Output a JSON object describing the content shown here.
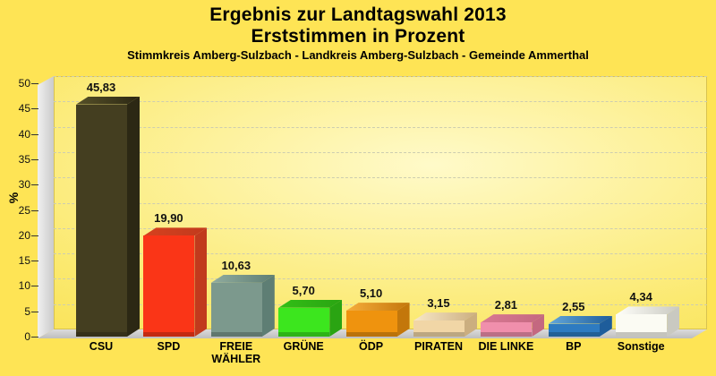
{
  "header": {
    "title_line1": "Ergebnis zur Landtagswahl 2013",
    "title_line2": "Erststimmen in Prozent",
    "subtitle": "Stimmkreis Amberg-Sulzbach - Landkreis Amberg-Sulzbach - Gemeinde Ammerthal"
  },
  "chart_data": {
    "type": "bar",
    "style": "3d-column",
    "title": "Ergebnis zur Landtagswahl 2013 - Erststimmen in Prozent",
    "subtitle": "Stimmkreis Amberg-Sulzbach - Landkreis Amberg-Sulzbach - Gemeinde Ammerthal",
    "ylabel": "%",
    "ylim": [
      0,
      50
    ],
    "ytick_step": 5,
    "grid": "horizontal-dashed",
    "legend": "none",
    "categories": [
      "CSU",
      "SPD",
      "FREIE WÄHLER",
      "GRÜNE",
      "ÖDP",
      "PIRATEN",
      "DIE LINKE",
      "BP",
      "Sonstige"
    ],
    "slugs": [
      "csu",
      "spd",
      "freie-waehler",
      "gruene",
      "oedp",
      "piraten",
      "die-linke",
      "bp",
      "sonstige"
    ],
    "values": [
      45.83,
      19.9,
      10.63,
      5.7,
      5.1,
      3.15,
      2.81,
      2.55,
      4.34
    ],
    "value_labels": [
      "45,83",
      "19,90",
      "10,63",
      "5,70",
      "5,10",
      "3,15",
      "2,81",
      "2,55",
      "4,34"
    ],
    "bar_colors": [
      {
        "front": "#443E20",
        "top": "#565028",
        "side": "#2C2814"
      },
      {
        "front": "#FA3517",
        "top": "#D6411E",
        "side": "#C13A1D"
      },
      {
        "front": "#7C998D",
        "top": "#90AC9F",
        "side": "#5E7E74"
      },
      {
        "front": "#3CE61E",
        "top": "#32BF16",
        "side": "#2AA412"
      },
      {
        "front": "#EF930E",
        "top": "#F6AD3C",
        "side": "#C3770B"
      },
      {
        "front": "#F1D6A6",
        "top": "#F8E8C8",
        "side": "#CBAE7F"
      },
      {
        "front": "#F08FAC",
        "top": "#D97993",
        "side": "#C46880"
      },
      {
        "front": "#2E7BC1",
        "top": "#63A7DB",
        "side": "#1E5D9B"
      },
      {
        "front": "#FBFBF3",
        "top": "#FFFFFA",
        "side": "#C9C9C1"
      }
    ],
    "colors": {
      "background": "#FEE455",
      "plot_inner": "#FFFAC9",
      "plot_mid": "#FBE96E",
      "plot_outer": "#F6D938",
      "wall": "#DEDEDE",
      "floor": "#D2D2D2",
      "grid": "#CDCDB0",
      "text": "#000000"
    }
  }
}
